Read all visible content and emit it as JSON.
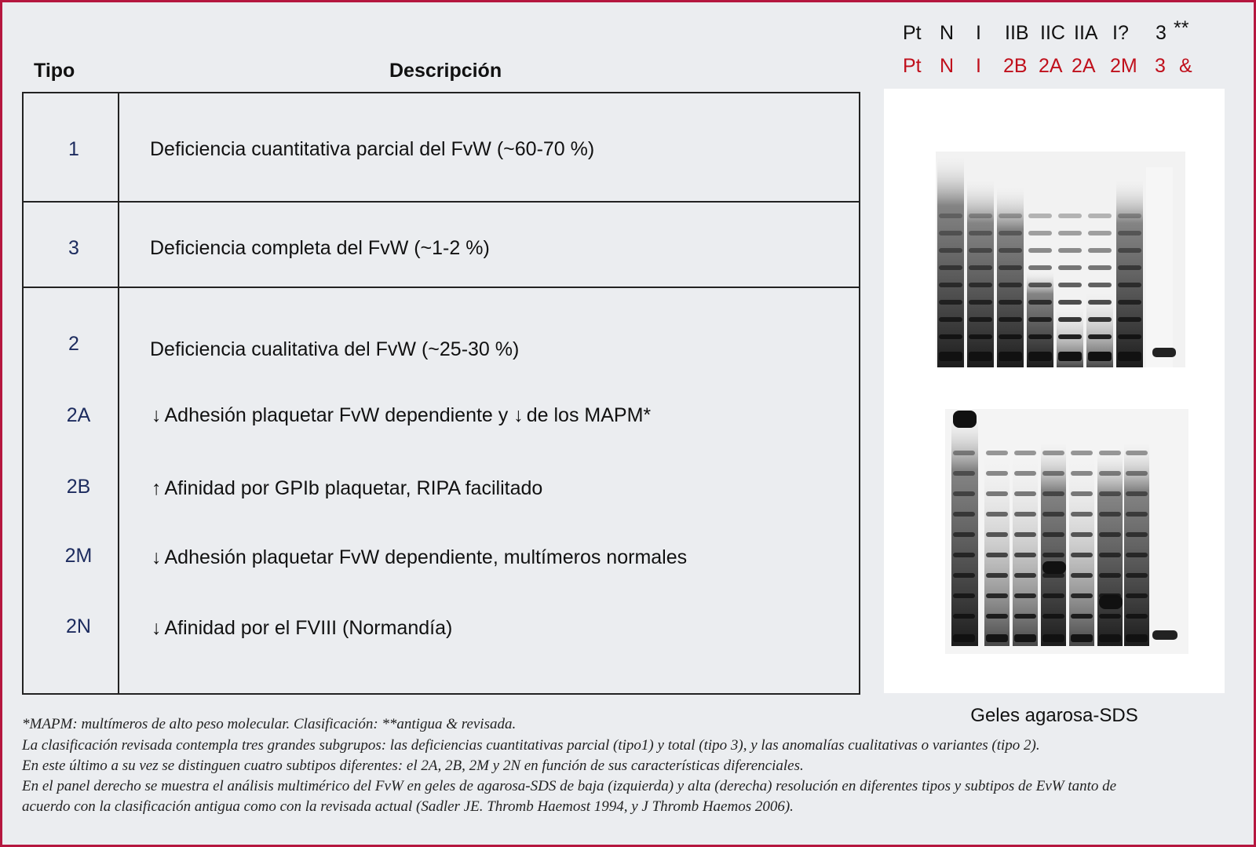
{
  "table": {
    "header_tipo": "Tipo",
    "header_desc": "Descripción",
    "rows": [
      {
        "tipo": "1",
        "desc": "Deficiencia cuantitativa parcial del FvW (~60-70 %)"
      },
      {
        "tipo": "3",
        "desc": "Deficiencia completa del FvW (~1-2 %)"
      },
      {
        "tipo": "2",
        "desc": "Deficiencia cualitativa del FvW (~25-30 %)"
      },
      {
        "tipo": "2A",
        "desc": "Adhesión plaquetar FvW dependiente y",
        "arrow": "↓",
        "desc2": "de los MAPM*",
        "arrow2": "↓"
      },
      {
        "tipo": "2B",
        "desc": "Afinidad por GPIb plaquetar, RIPA facilitado",
        "arrow": "↑"
      },
      {
        "tipo": "2M",
        "desc": "Adhesión plaquetar FvW dependiente, multímeros normales",
        "arrow": "↓"
      },
      {
        "tipo": "2N",
        "desc": "Afinidad por el FVIII (Normandía)",
        "arrow": "↓"
      }
    ]
  },
  "gel": {
    "lanes_old": [
      "Pt",
      "N",
      "I",
      "IIB",
      "IIC",
      "IIA",
      "I?",
      "3",
      "**"
    ],
    "lanes_new": [
      "Pt",
      "N",
      "I",
      "2B",
      "2A",
      "2A",
      "2M",
      "3",
      "&"
    ],
    "caption": "Geles  agarosa-SDS"
  },
  "footnotes": [
    "*MAPM: multímeros de alto peso molecular. Clasificación: **antigua & revisada.",
    "La clasificación revisada contempla tres grandes subgrupos: las deficiencias cuantitativas parcial (tipo1) y total (tipo 3), y las anomalías cualitativas o variantes (tipo 2).",
    "En este último a su vez se distinguen cuatro subtipos diferentes: el 2A, 2B, 2M y 2N en función de sus características diferenciales.",
    "En el panel derecho se muestra el análisis multimérico del FvW en geles de agarosa-SDS de baja (izquierda) y alta (derecha) resolución en diferentes tipos y subtipos de EvW tanto de",
    "acuerdo con la clasificación antigua como con la revisada actual (Sadler JE. Thromb Haemost 1994, y J Thromb Haemos 2006)."
  ],
  "colors": {
    "frame": "#b5173f",
    "tipo_text": "#1c2b5e",
    "new_lane_text": "#c0101c"
  }
}
